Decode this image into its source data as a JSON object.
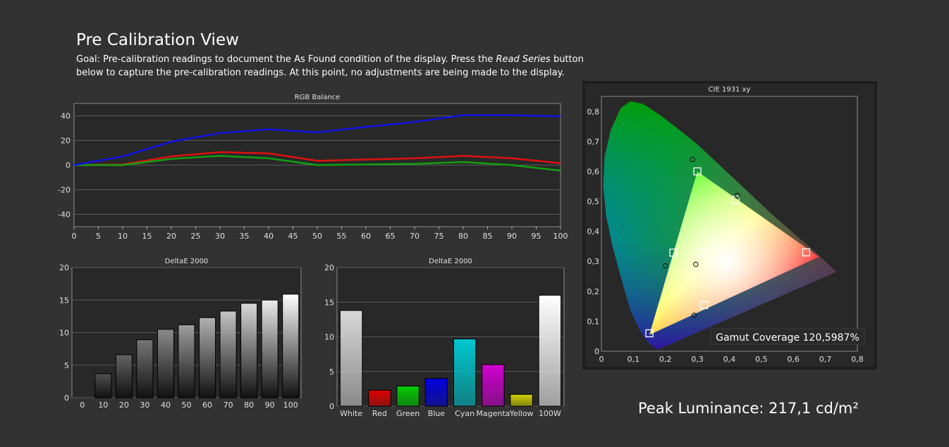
{
  "header": {
    "title": "Pre Calibration View",
    "goal_before": "Goal: Pre-calibration readings to document the As Found condition of the display. Press the ",
    "goal_em": "Read Series",
    "goal_after": " button below to capture the pre-calibration readings. At this point, no adjustments are being made to the display."
  },
  "peak_luminance": "Peak Luminance: 217,1 cd/m²",
  "colors": {
    "background": "#323232",
    "plot_bg": "#282828",
    "red_series": "#e01010",
    "green_series": "#10a010",
    "blue_series": "#1010e0"
  },
  "chart_data": [
    {
      "id": "rgb",
      "type": "line",
      "title": "RGB Balance",
      "x": [
        0,
        10,
        20,
        30,
        40,
        50,
        60,
        70,
        80,
        90,
        100
      ],
      "xticks": [
        "0",
        "5",
        "10",
        "15",
        "20",
        "25",
        "30",
        "35",
        "40",
        "45",
        "50",
        "55",
        "60",
        "65",
        "70",
        "75",
        "80",
        "85",
        "90",
        "95",
        "100"
      ],
      "xlim": [
        0,
        100
      ],
      "ylim": [
        -50,
        50
      ],
      "yticks": [
        "40",
        "20",
        "0",
        "-20",
        "-40"
      ],
      "grid": true,
      "series": [
        {
          "color": "#e01010",
          "values": [
            0,
            0.5,
            7,
            10.5,
            9.5,
            3.5,
            4.5,
            5.5,
            7.5,
            5.5,
            1.5
          ]
        },
        {
          "color": "#10a010",
          "values": [
            0,
            0,
            5,
            7.5,
            5.5,
            0,
            0.5,
            1,
            2.5,
            0,
            -4.5
          ]
        },
        {
          "color": "#1010e0",
          "values": [
            0,
            7,
            19,
            26,
            29,
            26.5,
            31,
            35,
            40.5,
            40.5,
            39.5
          ]
        }
      ]
    },
    {
      "id": "de_gray",
      "type": "bar",
      "title": "DeltaE 2000",
      "categories": [
        "0",
        "10",
        "20",
        "30",
        "40",
        "50",
        "60",
        "70",
        "80",
        "90",
        "100"
      ],
      "values": [
        0,
        3.7,
        6.6,
        8.9,
        10.5,
        11.2,
        12.3,
        13.3,
        14.5,
        15.0,
        15.9
      ],
      "ylim": [
        0,
        20
      ],
      "yticks": [
        "20",
        "15",
        "10",
        "5",
        "0"
      ],
      "grid": true
    },
    {
      "id": "de_color",
      "type": "bar",
      "title": "DeltaE 2000",
      "categories": [
        "White",
        "Red",
        "Green",
        "Blue",
        "Cyan",
        "Magenta",
        "Yellow",
        "100W"
      ],
      "values": [
        13.8,
        2.3,
        2.9,
        4.0,
        9.7,
        6.0,
        1.7,
        16.0
      ],
      "bar_colors": [
        "#d8d8d8",
        "#e00000",
        "#00cc00",
        "#0000e0",
        "#00c8d0",
        "#d000d0",
        "#d0d000",
        "#ffffff"
      ],
      "ylim": [
        0,
        20
      ],
      "yticks": [
        "20",
        "15",
        "10",
        "5",
        "0"
      ],
      "grid": true
    },
    {
      "id": "cie",
      "type": "scatter",
      "title": "CIE 1931 xy",
      "xlim": [
        0,
        0.8
      ],
      "ylim": [
        0,
        0.85
      ],
      "xticks": [
        "0",
        "0,1",
        "0,2",
        "0,3",
        "0,4",
        "0,5",
        "0,6",
        "0,7",
        "0,8"
      ],
      "yticks": [
        "0,8",
        "0,7",
        "0,6",
        "0,5",
        "0,4",
        "0,3",
        "0,2",
        "0,1",
        "0"
      ],
      "gamut_coverage": "Gamut Coverage 120,5987%",
      "target_squares": [
        [
          0.64,
          0.33
        ],
        [
          0.3,
          0.6
        ],
        [
          0.15,
          0.06
        ],
        [
          0.225,
          0.329
        ],
        [
          0.321,
          0.154
        ],
        [
          0.419,
          0.505
        ],
        [
          0.3127,
          0.329
        ]
      ],
      "measured_circles": [
        [
          0.285,
          0.64
        ],
        [
          0.425,
          0.52
        ],
        [
          0.2,
          0.285
        ],
        [
          0.29,
          0.12
        ],
        [
          0.295,
          0.29
        ]
      ]
    }
  ]
}
